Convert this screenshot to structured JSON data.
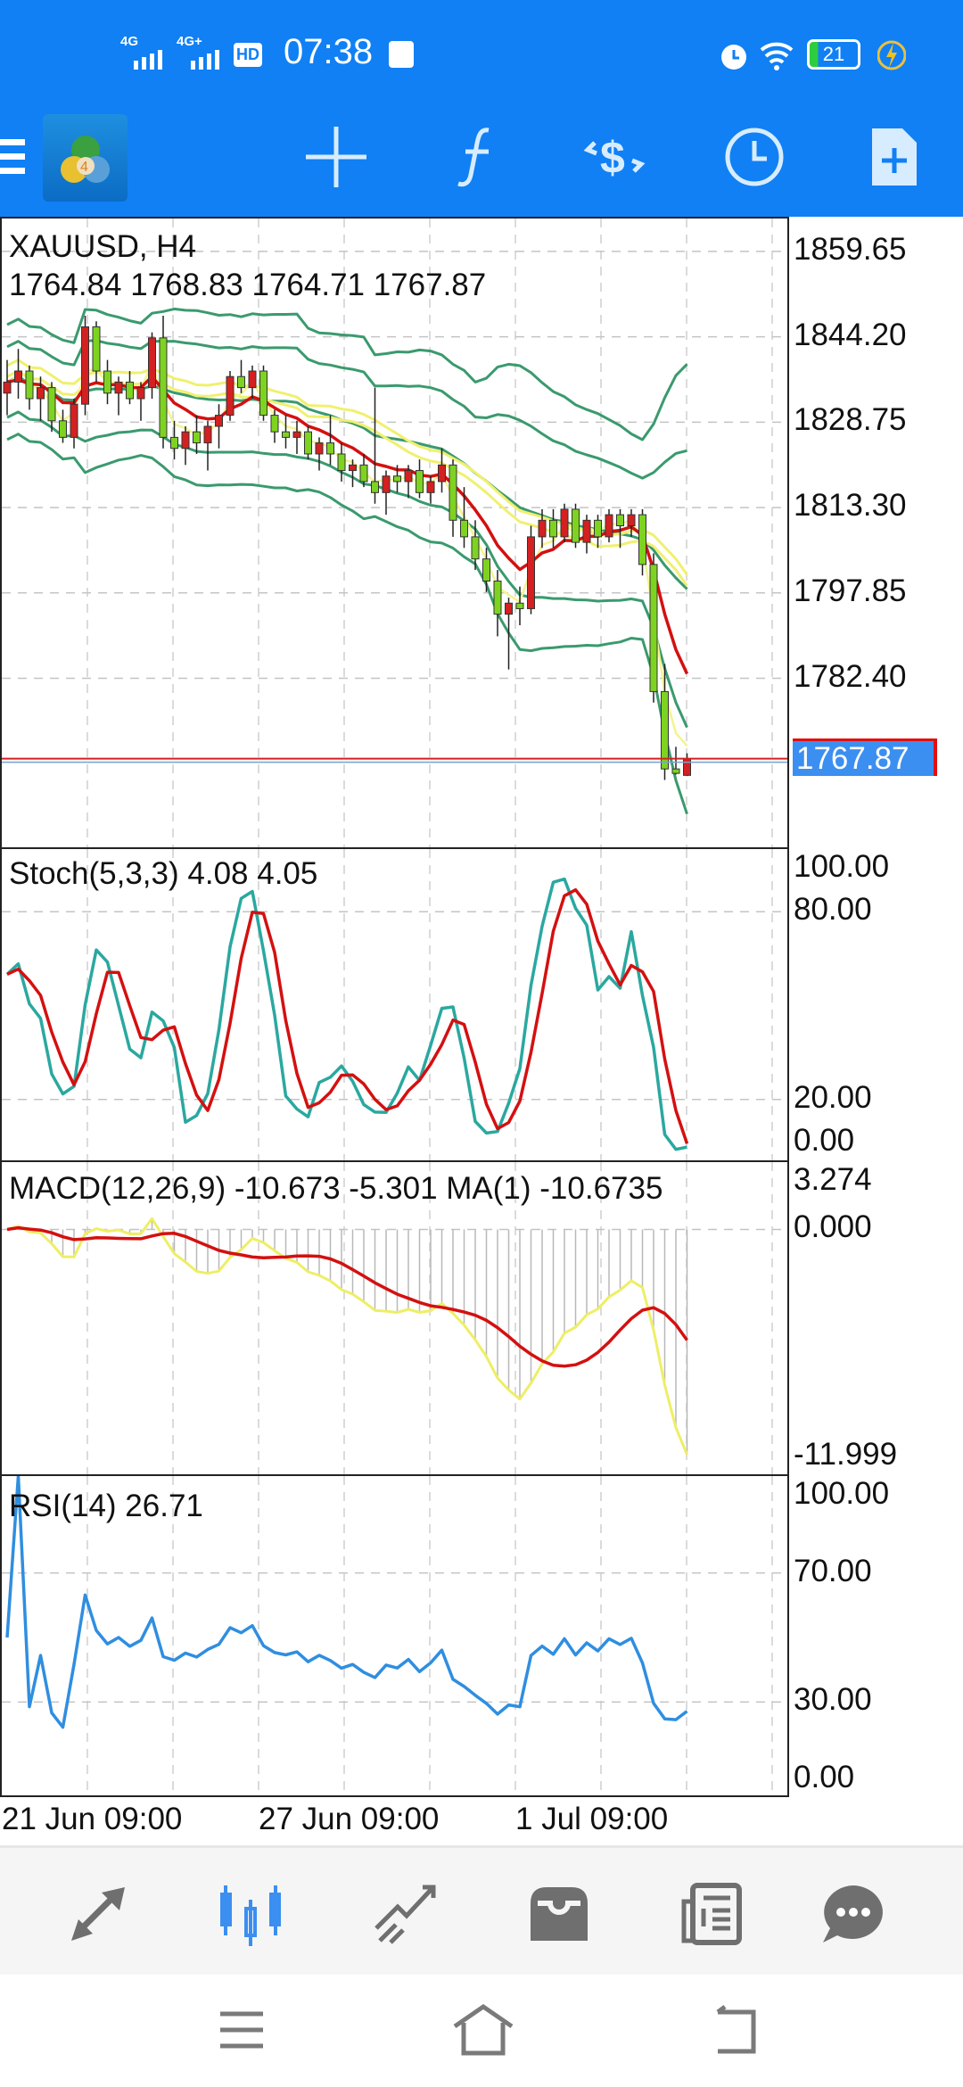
{
  "status_bar": {
    "network1": "4G",
    "network2": "4G+",
    "hd": "HD",
    "time": "07:38",
    "battery": "21"
  },
  "toolbar": {
    "icons": [
      "menu-icon",
      "app-logo",
      "crosshair-icon",
      "indicators-icon",
      "trade-icon",
      "timeframe-icon",
      "new-order-icon"
    ]
  },
  "colors": {
    "accent": "#1080f4",
    "bull": "#d42020",
    "bear": "#7ed321",
    "bands": "#3a9a6e",
    "ma_yellow": "#f0f070",
    "ma_red": "#d41010",
    "stoch_main": "#2aa8a0",
    "rsi": "#2f8ee0"
  },
  "chart_data": [
    {
      "type": "candlestick",
      "title": "XAUUSD, H4",
      "ohlc_label": "1764.84 1768.83 1764.71 1767.87",
      "y_ticks": [
        "1859.65",
        "1844.20",
        "1828.75",
        "1813.30",
        "1797.85",
        "1782.40"
      ],
      "ylim": [
        1751.5,
        1865.6
      ],
      "last_price": "1767.87",
      "last_value": 1767.87,
      "candles": [
        [
          1834,
          1840,
          1830,
          1836
        ],
        [
          1836,
          1842,
          1833,
          1838
        ],
        [
          1838,
          1839,
          1831,
          1833
        ],
        [
          1833,
          1837,
          1829,
          1835
        ],
        [
          1835,
          1836,
          1827,
          1829
        ],
        [
          1829,
          1831,
          1825,
          1826
        ],
        [
          1826,
          1833,
          1824,
          1832
        ],
        [
          1832,
          1848,
          1830,
          1846
        ],
        [
          1846,
          1847,
          1836,
          1838
        ],
        [
          1838,
          1840,
          1832,
          1834
        ],
        [
          1834,
          1837,
          1830,
          1836
        ],
        [
          1836,
          1838,
          1832,
          1833
        ],
        [
          1833,
          1836,
          1829,
          1835
        ],
        [
          1835,
          1845,
          1833,
          1844
        ],
        [
          1844,
          1848,
          1824,
          1826
        ],
        [
          1826,
          1829,
          1822,
          1824
        ],
        [
          1824,
          1828,
          1821,
          1827
        ],
        [
          1827,
          1830,
          1823,
          1825
        ],
        [
          1825,
          1829,
          1820,
          1828
        ],
        [
          1828,
          1832,
          1824,
          1830
        ],
        [
          1830,
          1838,
          1829,
          1837
        ],
        [
          1837,
          1840,
          1834,
          1835
        ],
        [
          1835,
          1839,
          1833,
          1838
        ],
        [
          1838,
          1839,
          1829,
          1830
        ],
        [
          1830,
          1831,
          1825,
          1827
        ],
        [
          1827,
          1830,
          1824,
          1826
        ],
        [
          1826,
          1829,
          1823,
          1827
        ],
        [
          1827,
          1828,
          1822,
          1823
        ],
        [
          1823,
          1826,
          1820,
          1825
        ],
        [
          1825,
          1830,
          1821,
          1823
        ],
        [
          1823,
          1825,
          1818,
          1820
        ],
        [
          1820,
          1822,
          1817,
          1821
        ],
        [
          1821,
          1823,
          1817,
          1818
        ],
        [
          1818,
          1835,
          1814,
          1816
        ],
        [
          1816,
          1820,
          1812,
          1819
        ],
        [
          1819,
          1821,
          1816,
          1818
        ],
        [
          1818,
          1821,
          1815,
          1820
        ],
        [
          1820,
          1822,
          1815,
          1816
        ],
        [
          1816,
          1819,
          1814,
          1818
        ],
        [
          1818,
          1824,
          1816,
          1821
        ],
        [
          1821,
          1822,
          1808,
          1811
        ],
        [
          1811,
          1817,
          1806,
          1808
        ],
        [
          1808,
          1811,
          1802,
          1804
        ],
        [
          1804,
          1806,
          1798,
          1800
        ],
        [
          1800,
          1802,
          1790,
          1794
        ],
        [
          1794,
          1797,
          1784,
          1796
        ],
        [
          1796,
          1799,
          1792,
          1795
        ],
        [
          1795,
          1810,
          1794,
          1808
        ],
        [
          1808,
          1813,
          1806,
          1811
        ],
        [
          1811,
          1813,
          1806,
          1808
        ],
        [
          1808,
          1814,
          1807,
          1813
        ],
        [
          1813,
          1814,
          1806,
          1807
        ],
        [
          1807,
          1812,
          1805,
          1811
        ],
        [
          1811,
          1812,
          1806,
          1808
        ],
        [
          1808,
          1813,
          1807,
          1812
        ],
        [
          1812,
          1813,
          1806,
          1810
        ],
        [
          1810,
          1813,
          1808,
          1812
        ],
        [
          1812,
          1813,
          1801,
          1803
        ],
        [
          1803,
          1805,
          1778,
          1780
        ],
        [
          1780,
          1785,
          1764,
          1766
        ],
        [
          1766,
          1770,
          1765,
          1765.2
        ],
        [
          1764.84,
          1768.83,
          1764.71,
          1767.87
        ]
      ]
    },
    {
      "type": "line",
      "title": "Stoch(5,3,3) 4.08 4.05",
      "y_ticks": [
        "100.00",
        "80.00",
        "20.00",
        "0.00"
      ],
      "ylim": [
        0,
        100
      ],
      "levels": [
        80,
        20
      ]
    },
    {
      "type": "bar+line",
      "title": "MACD(12,26,9) -10.673 -5.301 MA(1) -10.6735",
      "y_ticks": [
        "3.274",
        "0.000",
        "-11.999"
      ],
      "ylim": [
        -11.999,
        3.274
      ]
    },
    {
      "type": "line",
      "title": "RSI(14) 26.71",
      "y_ticks": [
        "100.00",
        "70.00",
        "30.00",
        "0.00"
      ],
      "ylim": [
        0,
        100
      ],
      "levels": [
        70,
        30
      ]
    }
  ],
  "time_axis": [
    "21 Jun 09:00",
    "27 Jun 09:00",
    "1 Jul 09:00"
  ],
  "bottom_nav": [
    {
      "name": "quotes",
      "icon": "quotes-icon"
    },
    {
      "name": "chart",
      "icon": "candlestick-icon",
      "active": true
    },
    {
      "name": "trade",
      "icon": "trade-trend-icon"
    },
    {
      "name": "history",
      "icon": "inbox-icon"
    },
    {
      "name": "news",
      "icon": "news-icon"
    },
    {
      "name": "messages",
      "icon": "chat-icon"
    }
  ]
}
